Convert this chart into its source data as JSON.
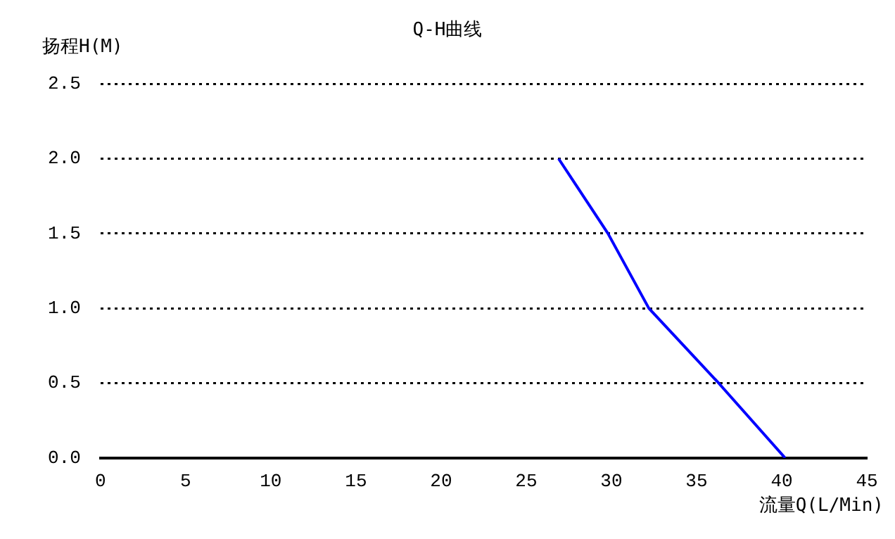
{
  "chart_data": {
    "type": "line",
    "title": "Q-H曲线",
    "ylabel": "扬程H(M)",
    "xlabel": "流量Q(L/Min)",
    "x": [
      26.9,
      29.8,
      32.2,
      36.3,
      40.2
    ],
    "series": [
      {
        "color": "#0000ff",
        "values": [
          2.0,
          1.5,
          1.0,
          0.5,
          0.0
        ]
      }
    ],
    "xlim": [
      0,
      45
    ],
    "xticks": [
      0,
      5,
      10,
      15,
      20,
      25,
      30,
      35,
      40,
      45
    ],
    "ylim": [
      0,
      2.5
    ],
    "yticks": [
      {
        "value": 0,
        "label": "0.0"
      },
      {
        "value": 0.5,
        "label": "0.5"
      },
      {
        "value": 1,
        "label": "1.0"
      },
      {
        "value": 1.5,
        "label": "1.5"
      },
      {
        "value": 2,
        "label": "2.0"
      },
      {
        "value": 2.5,
        "label": "2.5"
      }
    ],
    "grid": "y",
    "legend": false,
    "marker": "none",
    "line_style": "solid"
  }
}
